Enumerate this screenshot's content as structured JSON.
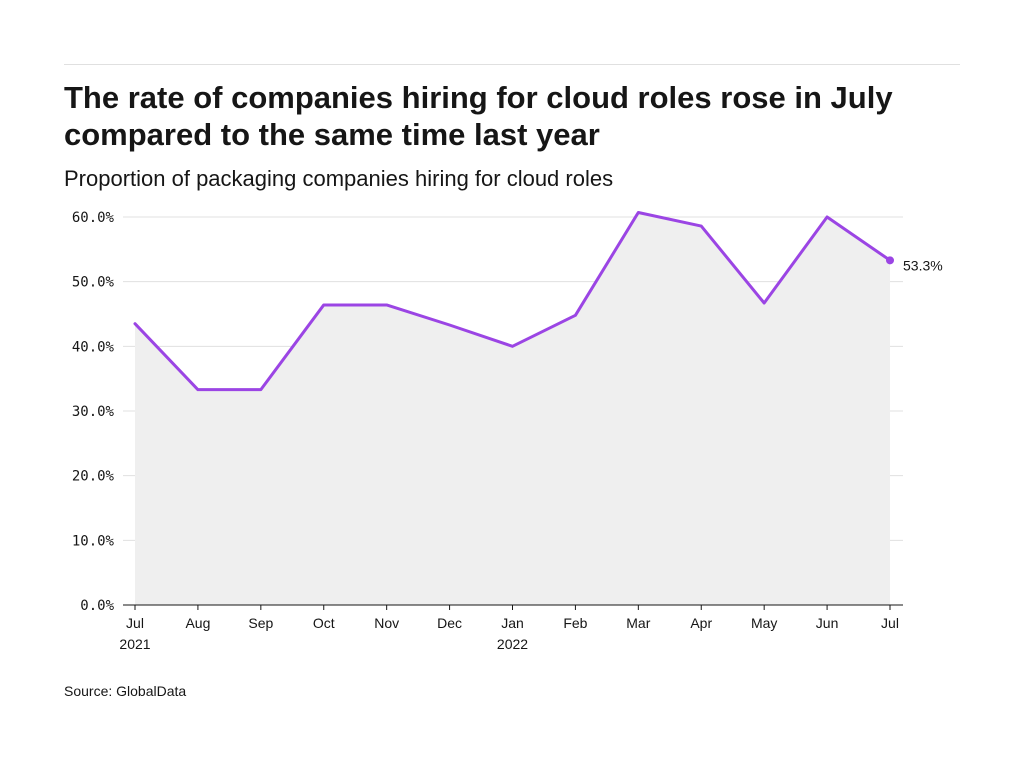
{
  "header": {
    "title": "The rate of companies hiring for cloud roles rose in July compared to the same time last year",
    "subtitle": "Proportion of packaging companies hiring for cloud roles"
  },
  "footer": {
    "source": "Source: GlobalData"
  },
  "colors": {
    "line": "#9b45e4",
    "area": "#efefef",
    "grid": "#e0e0e0",
    "axis": "#161616"
  },
  "chart_data": {
    "type": "area",
    "title": "The rate of companies hiring for cloud roles rose in July compared to the same time last year",
    "subtitle": "Proportion of packaging companies hiring for cloud roles",
    "xlabel": "",
    "ylabel": "",
    "x": [
      "Jul 2021",
      "Aug",
      "Sep",
      "Oct",
      "Nov",
      "Dec",
      "Jan 2022",
      "Feb",
      "Mar",
      "Apr",
      "May",
      "Jun",
      "Jul"
    ],
    "x_tick_labels": [
      [
        "Jul",
        "2021"
      ],
      [
        "Aug"
      ],
      [
        "Sep"
      ],
      [
        "Oct"
      ],
      [
        "Nov"
      ],
      [
        "Dec"
      ],
      [
        "Jan",
        "2022"
      ],
      [
        "Feb"
      ],
      [
        "Mar"
      ],
      [
        "Apr"
      ],
      [
        "May"
      ],
      [
        "Jun"
      ],
      [
        "Jul"
      ]
    ],
    "series": [
      {
        "values": [
          43.5,
          33.3,
          33.3,
          46.4,
          46.4,
          43.3,
          40.0,
          44.8,
          60.7,
          58.6,
          46.7,
          60.0,
          53.3
        ]
      }
    ],
    "ylim": [
      0,
      60
    ],
    "y_ticks": [
      {
        "value": 0,
        "label": "0.0%"
      },
      {
        "value": 10,
        "label": "10.0%"
      },
      {
        "value": 20,
        "label": "20.0%"
      },
      {
        "value": 30,
        "label": "30.0%"
      },
      {
        "value": 40,
        "label": "40.0%"
      },
      {
        "value": 50,
        "label": "50.0%"
      },
      {
        "value": 60,
        "label": "60.0%"
      }
    ],
    "end_label": "53.3%",
    "grid": true,
    "legend": "none"
  }
}
